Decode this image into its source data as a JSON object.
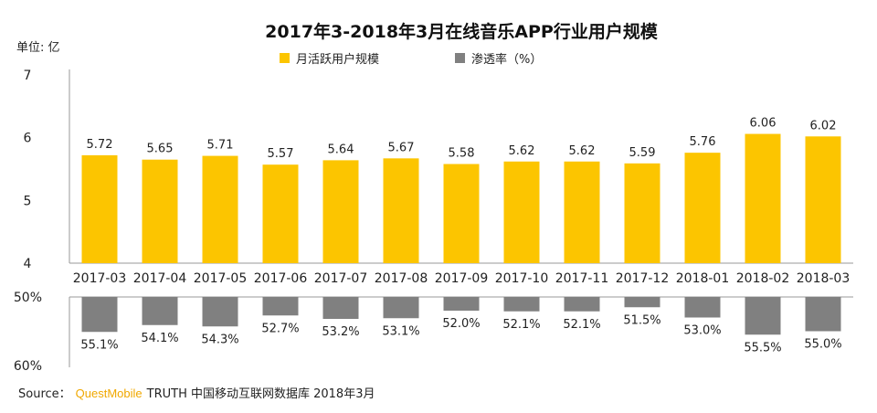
{
  "chart_data": [
    {
      "type": "bar",
      "title": "2017年3-2018年3月在线音乐APP行业用户规模",
      "unit_label": "单位: 亿",
      "series_name": "月活跃用户规模",
      "categories": [
        "2017-03",
        "2017-04",
        "2017-05",
        "2017-06",
        "2017-07",
        "2017-08",
        "2017-09",
        "2017-10",
        "2017-11",
        "2017-12",
        "2018-01",
        "2018-02",
        "2018-03"
      ],
      "values": [
        5.72,
        5.65,
        5.71,
        5.57,
        5.64,
        5.67,
        5.58,
        5.62,
        5.62,
        5.59,
        5.76,
        6.06,
        6.02
      ],
      "value_labels": [
        "5.72",
        "5.65",
        "5.71",
        "5.57",
        "5.64",
        "5.67",
        "5.58",
        "5.62",
        "5.62",
        "5.59",
        "5.76",
        "6.06",
        "6.02"
      ],
      "ylim": [
        4,
        7
      ],
      "yticks": [
        "4",
        "5",
        "6",
        "7"
      ],
      "color": "#fcc500"
    },
    {
      "type": "bar",
      "series_name": "渗透率（%）",
      "orientation": "downward",
      "categories": [
        "2017-03",
        "2017-04",
        "2017-05",
        "2017-06",
        "2017-07",
        "2017-08",
        "2017-09",
        "2017-10",
        "2017-11",
        "2017-12",
        "2018-01",
        "2018-02",
        "2018-03"
      ],
      "values": [
        55.1,
        54.1,
        54.3,
        52.7,
        53.2,
        53.1,
        52.0,
        52.1,
        52.1,
        51.5,
        53.0,
        55.5,
        55.0
      ],
      "value_labels": [
        "55.1%",
        "54.1%",
        "54.3%",
        "52.7%",
        "53.2%",
        "53.1%",
        "52.0%",
        "52.1%",
        "52.1%",
        "51.5%",
        "53.0%",
        "55.5%",
        "55.0%"
      ],
      "ylim": [
        50,
        60
      ],
      "yticks": [
        "50%",
        "60%"
      ],
      "color": "#808080"
    }
  ],
  "legend": [
    {
      "label": "月活跃用户规模",
      "color": "#fcc500"
    },
    {
      "label": "渗透率（%）",
      "color": "#808080"
    }
  ],
  "source": {
    "prefix": "Source：",
    "brand": "QuestMobile",
    "rest": "TRUTH 中国移动互联网数据库 2018年3月"
  }
}
